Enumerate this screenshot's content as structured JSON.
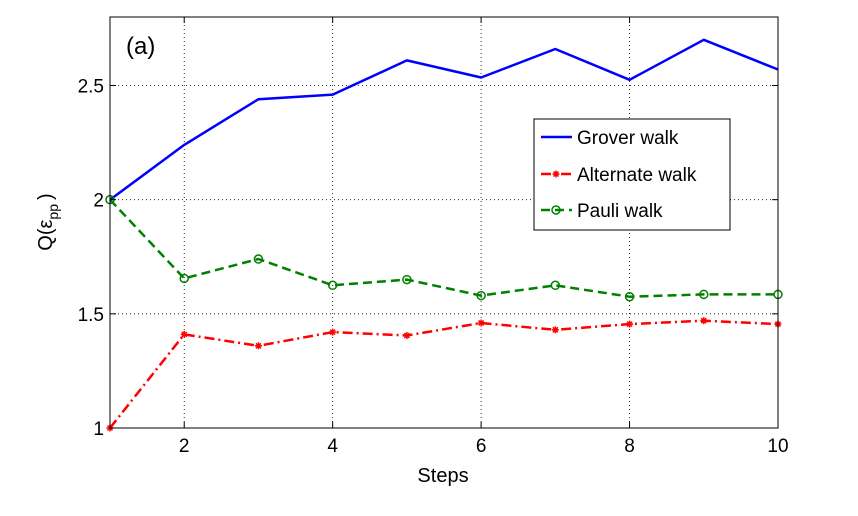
{
  "chart_data": {
    "type": "line",
    "panel_label": "(a)",
    "xlabel": "Steps",
    "ylabel_main": "Q(ε",
    "ylabel_sub": "pp",
    "ylabel_close": ")",
    "xlim": [
      1,
      10
    ],
    "ylim": [
      1,
      2.8
    ],
    "xticks": [
      2,
      4,
      6,
      8,
      10
    ],
    "yticks": [
      1,
      1.5,
      2,
      2.5
    ],
    "ytick_labels": [
      "1",
      "1.5",
      "2",
      "2.5"
    ],
    "grid": true,
    "legend_position": "upper-right",
    "x": [
      1,
      2,
      3,
      4,
      5,
      6,
      7,
      8,
      9,
      10
    ],
    "series": [
      {
        "name": "Grover walk",
        "values": [
          2.0,
          2.24,
          2.44,
          2.46,
          2.61,
          2.535,
          2.66,
          2.525,
          2.7,
          2.57
        ],
        "color": "#0000ff",
        "style": "solid",
        "marker": "none"
      },
      {
        "name": "Alternate walk",
        "values": [
          1.0,
          1.41,
          1.36,
          1.42,
          1.405,
          1.46,
          1.43,
          1.455,
          1.47,
          1.455
        ],
        "color": "#ff0000",
        "style": "dashdot",
        "marker": "star"
      },
      {
        "name": "Pauli walk",
        "values": [
          2.0,
          1.655,
          1.74,
          1.625,
          1.65,
          1.58,
          1.625,
          1.575,
          1.585,
          1.585
        ],
        "color": "#008000",
        "style": "dashed",
        "marker": "circle"
      }
    ]
  }
}
